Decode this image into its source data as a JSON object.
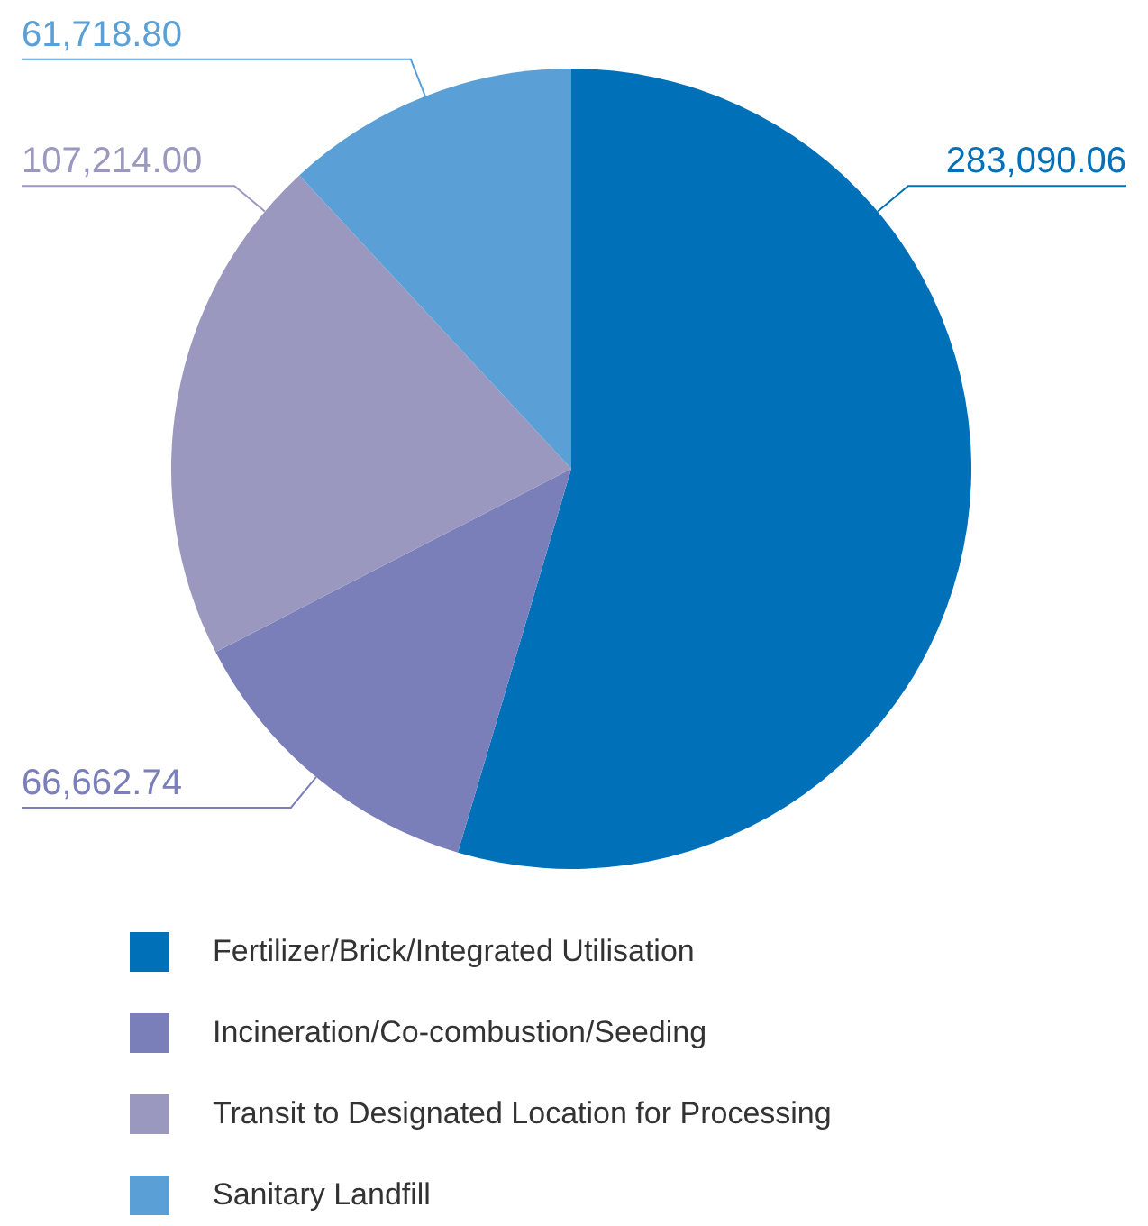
{
  "chart_data": {
    "type": "pie",
    "categories": [
      "Fertilizer/Brick/Integrated Utilisation",
      "Incineration/Co-combustion/Seeding",
      "Transit to Designated Location for Processing",
      "Sanitary Landfill"
    ],
    "values": [
      283090.06,
      66662.74,
      107214.0,
      61718.8
    ],
    "colors": [
      "#0070b8",
      "#7a7fba",
      "#9a98be",
      "#5aa0d6"
    ],
    "value_labels": [
      "283,090.06",
      "66,662.74",
      "107,214.00",
      "61,718.80"
    ],
    "legend": "bottom"
  }
}
